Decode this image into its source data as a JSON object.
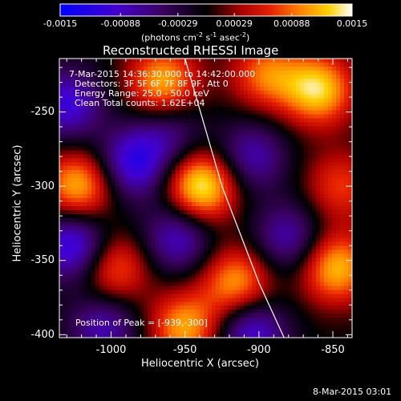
{
  "colorbar": {
    "ticks": [
      "-0.0015",
      "-0.00088",
      "-0.00029",
      "0.00029",
      "0.00088",
      "0.0015"
    ],
    "tick_values": [
      -0.0015,
      -0.00088,
      -0.00029,
      0.00029,
      0.00088,
      0.0015
    ],
    "range": [
      -0.0015,
      0.0015
    ],
    "unit_label": "(photons cm",
    "unit_sup1": "-2",
    "unit_mid": " s",
    "unit_sup2": "-1",
    "unit_mid2": " asec",
    "unit_sup3": "-2",
    "unit_end": ")"
  },
  "title": "Reconstructed RHESSI Image",
  "annotations": {
    "line1": "7-Mar-2015 14:36:30.000 to 14:42:00.000",
    "line2": "Detectors: 3F 5F 6F 7F 8F 9F, Att 0",
    "line3": "Energy Range: 25.0 - 50.0 keV",
    "line4": "Clean   Total counts: 1.62E+04",
    "peak": "Position of Peak = [-939,-300]"
  },
  "footer": {
    "timestamp": "8-Mar-2015 03:01"
  },
  "chart_data": {
    "type": "heatmap",
    "title": "Reconstructed RHESSI Image",
    "xlabel": "Heliocentric X (arcsec)",
    "ylabel": "Heliocentric Y (arcsec)",
    "xlim": [
      -1035,
      -837
    ],
    "ylim": [
      -402,
      -214
    ],
    "x_ticks": [
      -1000,
      -950,
      -900,
      -850
    ],
    "y_ticks": [
      -250,
      -300,
      -350,
      -400
    ],
    "x_tick_labels": [
      "-1000",
      "-950",
      "-900",
      "-850"
    ],
    "y_tick_labels": [
      "-250",
      "-300",
      "-350",
      "-400"
    ],
    "value_range": [
      -0.0015,
      0.0015
    ],
    "colormap": "blue-purple-black-red-orange-yellow-white",
    "peak": [
      -939,
      -300
    ],
    "sources": [
      {
        "x": -939,
        "y": -300,
        "value": 0.0015
      },
      {
        "x": -1022,
        "y": -300,
        "value": 0.0012
      },
      {
        "x": -965,
        "y": -230,
        "value": 0.00115
      },
      {
        "x": -895,
        "y": -225,
        "value": 0.0009
      },
      {
        "x": -860,
        "y": -235,
        "value": 0.0013
      },
      {
        "x": -998,
        "y": -355,
        "value": 0.0009
      },
      {
        "x": -915,
        "y": -365,
        "value": 0.0011
      },
      {
        "x": -848,
        "y": -355,
        "value": 0.0012
      },
      {
        "x": -950,
        "y": -395,
        "value": 0.0011
      },
      {
        "x": -845,
        "y": -300,
        "value": 0.0007
      },
      {
        "x": -985,
        "y": -285,
        "value": -0.0011
      },
      {
        "x": -1030,
        "y": -245,
        "value": -0.001
      },
      {
        "x": -905,
        "y": -280,
        "value": -0.0008
      },
      {
        "x": -1025,
        "y": -340,
        "value": -0.0012
      },
      {
        "x": -955,
        "y": -335,
        "value": -0.0009
      },
      {
        "x": -880,
        "y": -335,
        "value": -0.0008
      },
      {
        "x": -1005,
        "y": -395,
        "value": -0.0008
      },
      {
        "x": -905,
        "y": -398,
        "value": -0.001
      },
      {
        "x": -960,
        "y": -265,
        "value": -0.0006
      }
    ],
    "limb_curve": [
      [
        -950,
        -214
      ],
      [
        -925,
        -300
      ],
      [
        -900,
        -365
      ],
      [
        -883,
        -402
      ]
    ],
    "limb_color": "#ffffff"
  }
}
